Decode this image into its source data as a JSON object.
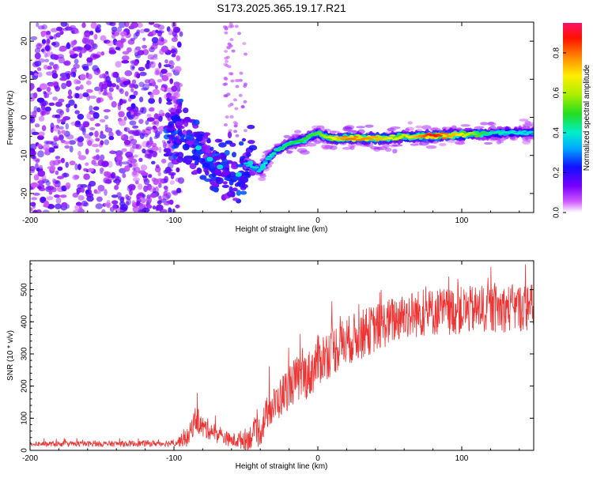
{
  "title": "S173.2025.365.19.17.R21",
  "chart_data": [
    {
      "type": "heatmap",
      "name": "spectrogram",
      "xlabel": "Height of straight line (km)",
      "ylabel": "Frequency (Hz)",
      "xlim": [
        -200,
        150
      ],
      "ylim": [
        -25,
        25
      ],
      "xticks": [
        -200,
        -100,
        0,
        100
      ],
      "yticks": [
        -20,
        -10,
        0,
        10,
        20
      ],
      "colorbar": {
        "label": "Normalized spectral amplitude",
        "range": [
          0,
          0.95
        ],
        "ticks": [
          "0.0",
          "0.2",
          "0.4",
          "0.6",
          "0.8"
        ]
      },
      "ridge_points": [
        {
          "x": -100,
          "y": -3
        },
        {
          "x": -90,
          "y": -6
        },
        {
          "x": -85,
          "y": -8
        },
        {
          "x": -80,
          "y": -10
        },
        {
          "x": -75,
          "y": -12
        },
        {
          "x": -70,
          "y": -13
        },
        {
          "x": -65,
          "y": -15
        },
        {
          "x": -60,
          "y": -14
        },
        {
          "x": -55,
          "y": -16
        },
        {
          "x": -50,
          "y": -12
        },
        {
          "x": -45,
          "y": -13
        },
        {
          "x": -40,
          "y": -14
        },
        {
          "x": -35,
          "y": -11
        },
        {
          "x": -30,
          "y": -9
        },
        {
          "x": -25,
          "y": -8
        },
        {
          "x": -20,
          "y": -7
        },
        {
          "x": -15,
          "y": -6.5
        },
        {
          "x": -10,
          "y": -6
        },
        {
          "x": -5,
          "y": -5
        },
        {
          "x": 0,
          "y": -4
        },
        {
          "x": 5,
          "y": -5
        },
        {
          "x": 10,
          "y": -5.5
        },
        {
          "x": 20,
          "y": -5.5
        },
        {
          "x": 30,
          "y": -5.5
        },
        {
          "x": 40,
          "y": -5.5
        },
        {
          "x": 50,
          "y": -5.5
        },
        {
          "x": 60,
          "y": -5
        },
        {
          "x": 70,
          "y": -5
        },
        {
          "x": 80,
          "y": -4.8
        },
        {
          "x": 90,
          "y": -4.7
        },
        {
          "x": 100,
          "y": -4.5
        },
        {
          "x": 110,
          "y": -4.4
        },
        {
          "x": 120,
          "y": -4.2
        },
        {
          "x": 130,
          "y": -4
        },
        {
          "x": 140,
          "y": -4
        },
        {
          "x": 150,
          "y": -4
        }
      ],
      "ridge_amplitude": [
        {
          "x": -100,
          "a": 0.25
        },
        {
          "x": -60,
          "a": 0.35
        },
        {
          "x": -40,
          "a": 0.4
        },
        {
          "x": -20,
          "a": 0.5
        },
        {
          "x": 0,
          "a": 0.55
        },
        {
          "x": 20,
          "a": 0.85
        },
        {
          "x": 40,
          "a": 0.8
        },
        {
          "x": 60,
          "a": 0.65
        },
        {
          "x": 80,
          "a": 0.95
        },
        {
          "x": 100,
          "a": 0.7
        },
        {
          "x": 120,
          "a": 0.45
        },
        {
          "x": 150,
          "a": 0.4
        }
      ],
      "noise_x_range": [
        -200,
        -95
      ],
      "noise_amplitude": [
        0.05,
        0.2
      ]
    },
    {
      "type": "line",
      "name": "snr",
      "xlabel": "Height of straight line (km)",
      "ylabel": "SNR (10 * v/v)",
      "xlim": [
        -200,
        150
      ],
      "ylim": [
        0,
        590
      ],
      "xticks": [
        -200,
        -100,
        0,
        100
      ],
      "yticks": [
        0,
        100,
        200,
        300,
        400,
        500
      ],
      "color": "#ee3333",
      "trend": [
        {
          "x": -200,
          "y": 20
        },
        {
          "x": -150,
          "y": 20
        },
        {
          "x": -100,
          "y": 22
        },
        {
          "x": -90,
          "y": 40
        },
        {
          "x": -85,
          "y": 100
        },
        {
          "x": -80,
          "y": 70
        },
        {
          "x": -75,
          "y": 65
        },
        {
          "x": -70,
          "y": 50
        },
        {
          "x": -60,
          "y": 30
        },
        {
          "x": -50,
          "y": 35
        },
        {
          "x": -40,
          "y": 60
        },
        {
          "x": -35,
          "y": 120
        },
        {
          "x": -30,
          "y": 140
        },
        {
          "x": -25,
          "y": 170
        },
        {
          "x": -20,
          "y": 200
        },
        {
          "x": -15,
          "y": 220
        },
        {
          "x": -10,
          "y": 230
        },
        {
          "x": -5,
          "y": 240
        },
        {
          "x": 0,
          "y": 280
        },
        {
          "x": 10,
          "y": 310
        },
        {
          "x": 20,
          "y": 340
        },
        {
          "x": 30,
          "y": 360
        },
        {
          "x": 40,
          "y": 380
        },
        {
          "x": 50,
          "y": 400
        },
        {
          "x": 60,
          "y": 420
        },
        {
          "x": 80,
          "y": 430
        },
        {
          "x": 100,
          "y": 435
        },
        {
          "x": 120,
          "y": 440
        },
        {
          "x": 150,
          "y": 445
        }
      ],
      "noise": [
        {
          "x": -200,
          "s": 8
        },
        {
          "x": -100,
          "s": 10
        },
        {
          "x": -85,
          "s": 40
        },
        {
          "x": -60,
          "s": 20
        },
        {
          "x": -40,
          "s": 50
        },
        {
          "x": -20,
          "s": 70
        },
        {
          "x": 0,
          "s": 80
        },
        {
          "x": 50,
          "s": 75
        },
        {
          "x": 150,
          "s": 75
        }
      ],
      "ymax_observed": 580
    }
  ]
}
